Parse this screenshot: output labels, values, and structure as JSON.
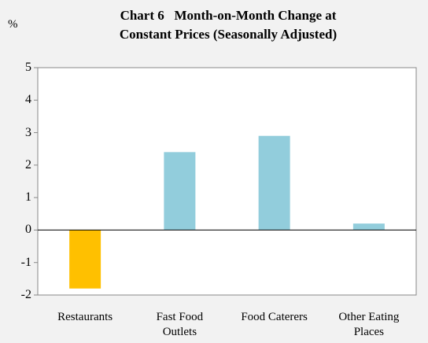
{
  "chart_data": {
    "type": "bar",
    "title": "Chart 6   Month-on-Month Change at\nConstant Prices (Seasonally Adjusted)",
    "y_label": "%",
    "categories": [
      "Restaurants",
      "Fast Food\nOutlets",
      "Food Caterers",
      "Other Eating\nPlaces"
    ],
    "values": [
      -1.8,
      2.4,
      2.9,
      0.2
    ],
    "colors": [
      "#ffc000",
      "#92cddc",
      "#92cddc",
      "#92cddc"
    ],
    "ylim": [
      -2,
      5
    ],
    "yticks": [
      -2,
      -1,
      0,
      1,
      2,
      3,
      4,
      5
    ],
    "grid": false
  }
}
